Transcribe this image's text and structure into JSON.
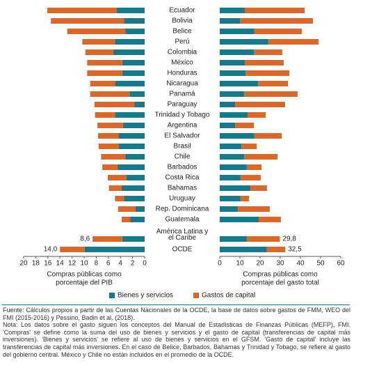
{
  "chart_data": {
    "type": "bar",
    "orientation": "horizontal",
    "categories": [
      "Ecuador",
      "Bolivia",
      "Belice",
      "Perú",
      "Colombia",
      "México",
      "Honduras",
      "Nicaragua",
      "Panamá",
      "Paraguay",
      "Trinidad y Tobago",
      "Argentina",
      "El Salvador",
      "Brasil",
      "Chile",
      "Barbados",
      "Costa Rica",
      "Bahamas",
      "Uruguay",
      "Rep. Dominicana",
      "Guatemala",
      "América Latina y el Caribe",
      "OCDE"
    ],
    "series": [
      {
        "name": "Bienes y servicios",
        "color": "#17798a"
      },
      {
        "name": "Gastos de capital",
        "color": "#d8692c"
      }
    ],
    "panels": [
      {
        "xlabel": [
          "Compras públicas como",
          "porcentaje del PIB"
        ],
        "xlim": [
          20,
          0
        ],
        "xticks": [
          20,
          18,
          16,
          14,
          12,
          10,
          8,
          6,
          4,
          2,
          0
        ],
        "values": [
          [
            4.6,
            3.4,
            3.2,
            4.9,
            5.2,
            3.7,
            3.7,
            4.9,
            2.5,
            1.7,
            4.9,
            3.6,
            4.3,
            4.3,
            3.2,
            4.5,
            3.0,
            3.8,
            3.4,
            1.5,
            2.4,
            3.7,
            9.9
          ],
          [
            11.5,
            12.1,
            9.6,
            5.4,
            4.6,
            5.8,
            5.8,
            4.1,
            6.5,
            6.6,
            3.3,
            4.2,
            3.4,
            3.3,
            4.0,
            2.5,
            3.1,
            2.1,
            1.5,
            2.9,
            1.4,
            4.9,
            4.1
          ]
        ],
        "total_labels": [
          null,
          null,
          null,
          null,
          null,
          null,
          null,
          null,
          null,
          null,
          null,
          null,
          null,
          null,
          null,
          null,
          null,
          null,
          null,
          null,
          null,
          "8,6",
          "14,0"
        ]
      },
      {
        "xlabel": [
          "Compras públicas como",
          "porcentaje del gasto total"
        ],
        "xlim": [
          0,
          60
        ],
        "xticks": [
          0,
          10,
          20,
          30,
          40,
          50,
          60
        ],
        "values": [
          [
            12.4,
            10.0,
            17.2,
            24.1,
            16.9,
            12.4,
            12.8,
            19.0,
            12.1,
            7.6,
            13.8,
            7.6,
            17.2,
            10.7,
            12.1,
            13.4,
            10.3,
            15.2,
            10.3,
            9.0,
            19.3,
            13.4,
            23.4
          ],
          [
            29.7,
            36.2,
            23.5,
            24.9,
            14.1,
            19.3,
            21.7,
            14.8,
            26.5,
            24.8,
            9.0,
            9.3,
            13.5,
            7.6,
            16.5,
            7.3,
            10.0,
            8.2,
            4.2,
            15.8,
            11.0,
            16.4,
            9.1
          ]
        ],
        "total_labels": [
          null,
          null,
          null,
          null,
          null,
          null,
          null,
          null,
          null,
          null,
          null,
          null,
          null,
          null,
          null,
          null,
          null,
          null,
          null,
          null,
          null,
          "29,8",
          "32,5"
        ]
      }
    ],
    "source": "Fuente: Cálculos propios a partir de las Cuentas Nacionales de la OCDE, la base de datos sobre gastos de FMM, WEO del FMI (2015-2016) y Pessino, Badin et al. (2018).",
    "note": "Nota: Los datos sobre el gasto siguen los conceptos del Manual de Estadísticas de Finanzas Públicas (MEFP), FMI. 'Compras' se define como la suma del uso de bienes y servicios y el gasto de capital (transferencias de capital más inversiones). 'Bienes y servicios' se refiere al uso de bienes y servicios en el GFSM. 'Gasto de capital' incluye las transferencias de capital más inversiones. En el caso de Belice, Barbados, Bahamas y Trinidad y Tobago, se refiere al gasto del gobierno central. México y Chile no están incluidos en el promedio de la OCDE."
  }
}
